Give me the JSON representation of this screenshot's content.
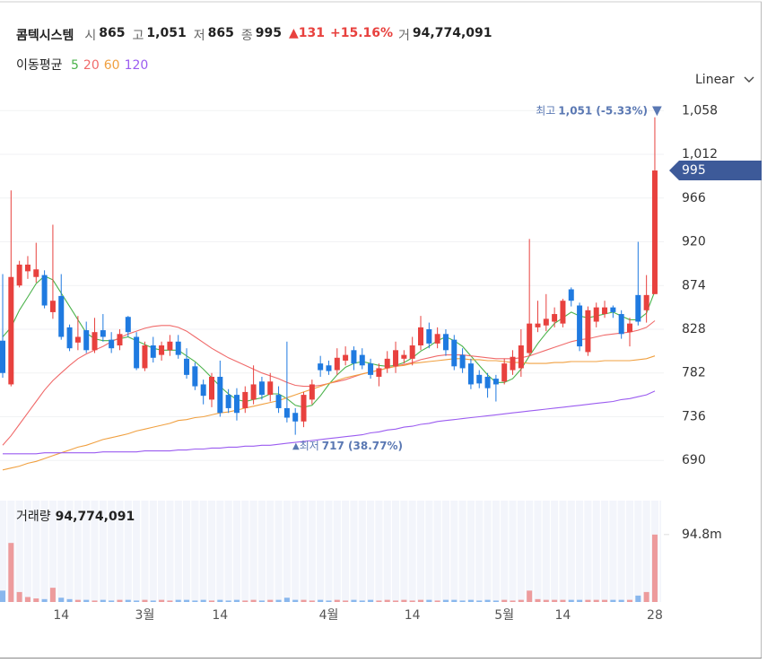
{
  "header": {
    "name": "콤텍시스템",
    "items": [
      {
        "label": "시",
        "value": "865"
      },
      {
        "label": "고",
        "value": "1,051"
      },
      {
        "label": "저",
        "value": "865"
      },
      {
        "label": "종",
        "value": "995"
      }
    ],
    "change": "131",
    "change_pct": "+15.16%",
    "volume_label": "거",
    "volume": "94,774,091"
  },
  "chart_data": {
    "type": "candlestick",
    "scale_mode": "Linear",
    "up_color": "#e8413e",
    "down_color": "#1f7ae0",
    "categories": [
      null,
      null,
      null,
      null,
      null,
      null,
      null,
      "14",
      null,
      null,
      null,
      null,
      null,
      null,
      null,
      null,
      null,
      "3월",
      null,
      null,
      null,
      null,
      null,
      null,
      null,
      null,
      "14",
      null,
      null,
      null,
      null,
      null,
      null,
      null,
      null,
      null,
      null,
      null,
      null,
      "4월",
      null,
      null,
      null,
      null,
      null,
      null,
      null,
      null,
      null,
      "14",
      null,
      null,
      null,
      null,
      null,
      null,
      null,
      null,
      null,
      null,
      "5월",
      null,
      null,
      null,
      null,
      null,
      null,
      "14",
      null,
      null,
      null,
      null,
      null,
      null,
      null,
      null,
      null,
      null,
      "28"
    ],
    "open": [
      816,
      770,
      874,
      889,
      883,
      885,
      846,
      863,
      830,
      814,
      827,
      806,
      827,
      817,
      811,
      841,
      820,
      787,
      811,
      801,
      806,
      815,
      797,
      789,
      770,
      754,
      778,
      759,
      759,
      745,
      754,
      773,
      759,
      759,
      745,
      740,
      731,
      754,
      792,
      790,
      785,
      795,
      806,
      801,
      792,
      778,
      787,
      789,
      797,
      797,
      811,
      828,
      813,
      823,
      817,
      801,
      792,
      780,
      778,
      776,
      773,
      785,
      787,
      803,
      830,
      832,
      836,
      834,
      870,
      853,
      804,
      836,
      844,
      851,
      844,
      825,
      864,
      848,
      865
    ],
    "high": [
      886,
      974,
      900,
      905,
      919,
      890,
      938,
      886,
      833,
      842,
      836,
      840,
      844,
      825,
      828,
      842,
      825,
      815,
      820,
      815,
      822,
      822,
      808,
      793,
      775,
      782,
      795,
      765,
      766,
      768,
      790,
      778,
      782,
      768,
      815,
      745,
      762,
      775,
      800,
      795,
      808,
      810,
      810,
      808,
      797,
      792,
      805,
      815,
      806,
      820,
      842,
      835,
      830,
      828,
      822,
      808,
      797,
      785,
      782,
      780,
      797,
      806,
      828,
      923,
      858,
      865,
      851,
      860,
      872,
      856,
      852,
      856,
      858,
      853,
      848,
      840,
      920,
      885,
      1051
    ],
    "low": [
      777,
      768,
      872,
      881,
      877,
      850,
      839,
      817,
      805,
      806,
      803,
      803,
      815,
      803,
      806,
      820,
      785,
      784,
      793,
      795,
      800,
      797,
      776,
      764,
      749,
      746,
      736,
      740,
      732,
      740,
      749,
      754,
      752,
      740,
      730,
      717,
      725,
      749,
      778,
      780,
      780,
      790,
      785,
      786,
      776,
      768,
      782,
      782,
      792,
      790,
      806,
      808,
      808,
      800,
      785,
      782,
      765,
      766,
      756,
      752,
      770,
      780,
      778,
      800,
      825,
      826,
      830,
      830,
      852,
      805,
      800,
      830,
      840,
      840,
      818,
      810,
      832,
      835,
      865
    ],
    "close": [
      782,
      883,
      896,
      896,
      891,
      853,
      858,
      820,
      808,
      820,
      806,
      825,
      820,
      808,
      823,
      825,
      787,
      811,
      798,
      811,
      815,
      801,
      780,
      768,
      758,
      778,
      740,
      745,
      740,
      762,
      770,
      759,
      773,
      745,
      735,
      731,
      759,
      770,
      785,
      784,
      798,
      801,
      792,
      790,
      780,
      787,
      797,
      806,
      801,
      811,
      830,
      813,
      823,
      806,
      789,
      787,
      770,
      771,
      766,
      770,
      792,
      799,
      811,
      834,
      834,
      839,
      844,
      858,
      858,
      810,
      848,
      851,
      851,
      846,
      823,
      834,
      836,
      864,
      995
    ],
    "ylim": [
      660,
      1080
    ],
    "yticks": [
      690,
      736,
      782,
      828,
      874,
      920,
      966,
      {
        "value": 1012,
        "label": "1,012"
      },
      {
        "value": 1058,
        "label": "1,058"
      }
    ],
    "grid": true,
    "annotations": [
      {
        "label": "최고",
        "value": "1,051 (-5.33%)"
      },
      {
        "label": "최저",
        "value": "717 (38.77%)"
      }
    ],
    "moving_averages": {
      "title": "이동평균",
      "series": [
        {
          "name": "5",
          "color": "#4cb34c",
          "values": [
            820,
            830,
            848,
            862,
            876,
            884,
            880,
            866,
            852,
            838,
            824,
            818,
            816,
            816,
            818,
            820,
            816,
            812,
            808,
            806,
            806,
            806,
            800,
            794,
            786,
            777,
            768,
            760,
            754,
            752,
            754,
            756,
            760,
            760,
            755,
            748,
            746,
            748,
            758,
            770,
            780,
            788,
            792,
            794,
            792,
            790,
            789,
            790,
            793,
            798,
            805,
            810,
            816,
            820,
            816,
            810,
            800,
            790,
            780,
            772,
            772,
            776,
            786,
            800,
            813,
            824,
            834,
            840,
            846,
            842,
            840,
            842,
            844,
            846,
            842,
            838,
            838,
            845,
            868
          ]
        },
        {
          "name": "20",
          "color": "#f06a6a",
          "values": [
            706,
            716,
            728,
            740,
            752,
            764,
            774,
            782,
            790,
            797,
            802,
            806,
            810,
            815,
            819,
            823,
            826,
            829,
            831,
            832,
            832,
            830,
            826,
            820,
            814,
            808,
            803,
            798,
            794,
            790,
            786,
            782,
            779,
            776,
            772,
            769,
            768,
            768,
            769,
            771,
            773,
            775,
            778,
            781,
            783,
            785,
            787,
            789,
            791,
            793,
            796,
            798,
            800,
            801,
            801,
            801,
            800,
            799,
            798,
            797,
            797,
            797,
            798,
            800,
            803,
            806,
            809,
            812,
            815,
            817,
            818,
            820,
            822,
            823,
            824,
            825,
            827,
            830,
            837
          ]
        },
        {
          "name": "60",
          "color": "#f0a040",
          "values": [
            680,
            682,
            684,
            687,
            689,
            692,
            695,
            698,
            701,
            704,
            706,
            709,
            712,
            714,
            716,
            718,
            721,
            723,
            725,
            727,
            729,
            732,
            733,
            735,
            736,
            738,
            740,
            741,
            743,
            745,
            747,
            749,
            751,
            753,
            756,
            759,
            762,
            765,
            768,
            771,
            774,
            777,
            779,
            781,
            783,
            785,
            787,
            789,
            790,
            792,
            793,
            794,
            795,
            796,
            797,
            797,
            796,
            796,
            795,
            795,
            794,
            793,
            793,
            792,
            792,
            792,
            793,
            793,
            794,
            794,
            794,
            794,
            795,
            795,
            795,
            795,
            796,
            797,
            800
          ]
        },
        {
          "name": "120",
          "color": "#9b5cf0",
          "values": [
            697,
            697,
            697,
            697,
            697,
            698,
            698,
            698,
            698,
            698,
            698,
            698,
            699,
            699,
            699,
            699,
            699,
            700,
            700,
            700,
            700,
            701,
            701,
            702,
            702,
            703,
            703,
            704,
            704,
            705,
            705,
            706,
            706,
            707,
            708,
            709,
            710,
            711,
            712,
            713,
            714,
            715,
            716,
            717,
            719,
            720,
            722,
            723,
            725,
            726,
            728,
            729,
            731,
            732,
            733,
            734,
            735,
            736,
            737,
            738,
            739,
            740,
            741,
            742,
            743,
            744,
            745,
            746,
            747,
            748,
            749,
            750,
            751,
            752,
            754,
            755,
            757,
            759,
            763
          ]
        }
      ]
    },
    "volume": {
      "title": "거래량",
      "total": "94,774,091",
      "values": [
        16000000,
        83000000,
        14000000,
        7000000,
        5000000,
        4000000,
        20000000,
        6000000,
        4000000,
        3000000,
        3000000,
        2000000,
        3000000,
        2000000,
        3000000,
        3000000,
        2000000,
        3000000,
        2000000,
        3000000,
        2000000,
        3000000,
        3000000,
        2000000,
        3000000,
        2000000,
        3000000,
        2000000,
        3000000,
        2000000,
        3000000,
        2000000,
        3000000,
        3000000,
        6000000,
        3000000,
        3000000,
        2000000,
        3000000,
        2000000,
        3000000,
        2000000,
        3000000,
        2000000,
        3000000,
        2000000,
        3000000,
        2000000,
        3000000,
        2000000,
        3000000,
        3000000,
        2000000,
        3000000,
        3000000,
        2000000,
        3000000,
        2000000,
        3000000,
        2000000,
        3000000,
        2000000,
        3000000,
        16000000,
        4000000,
        3000000,
        3000000,
        3000000,
        3000000,
        3000000,
        3000000,
        3000000,
        3000000,
        3000000,
        3000000,
        3000000,
        9000000,
        14000000,
        94774091
      ],
      "ylim": [
        0,
        140000000
      ],
      "yticks": [
        {
          "value": 94800000,
          "label": "94.8m"
        }
      ]
    }
  }
}
